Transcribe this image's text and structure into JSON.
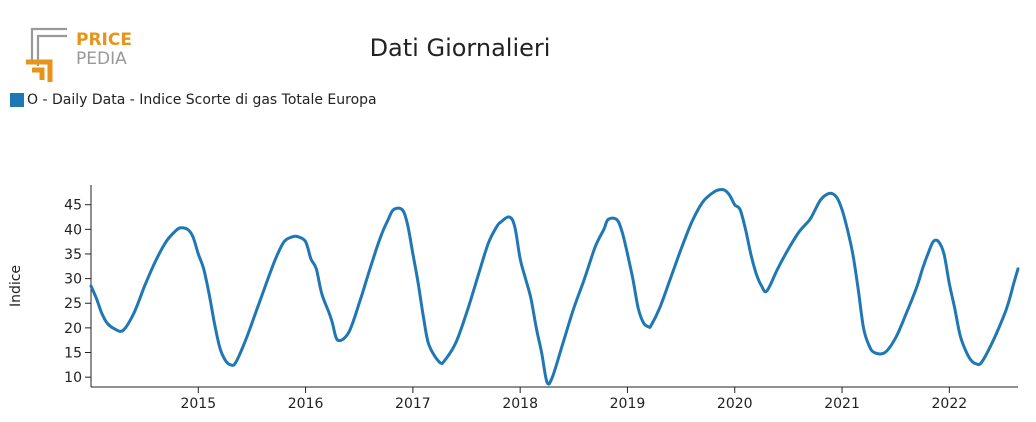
{
  "logo": {
    "line1": "PRICE",
    "line2": "PEDIA",
    "colors": {
      "accent": "#e8941a",
      "gray": "#999999"
    }
  },
  "chart_data": {
    "type": "line",
    "title": "Dati Giornalieri",
    "ylabel": "Indice",
    "xlabel": "",
    "ylim": [
      8,
      49
    ],
    "xlim": [
      2014.0,
      2022.64
    ],
    "yticks": [
      10,
      15,
      20,
      25,
      30,
      35,
      40,
      45
    ],
    "xticks": [
      "2015",
      "2016",
      "2017",
      "2018",
      "2019",
      "2020",
      "2021",
      "2022"
    ],
    "legend_position": "top-left",
    "series": [
      {
        "name": "O - Daily Data - Indice Scorte di gas Totale Europa",
        "color": "#1f77b4",
        "x": [
          2014.0,
          2014.05,
          2014.1,
          2014.15,
          2014.22,
          2014.3,
          2014.4,
          2014.5,
          2014.6,
          2014.7,
          2014.78,
          2014.83,
          2014.9,
          2014.95,
          2015.0,
          2015.05,
          2015.1,
          2015.15,
          2015.2,
          2015.25,
          2015.3,
          2015.35,
          2015.45,
          2015.55,
          2015.65,
          2015.72,
          2015.8,
          2015.88,
          2015.93,
          2016.0,
          2016.05,
          2016.1,
          2016.15,
          2016.22,
          2016.25,
          2016.3,
          2016.4,
          2016.5,
          2016.6,
          2016.7,
          2016.77,
          2016.82,
          2016.9,
          2016.95,
          2017.0,
          2017.05,
          2017.1,
          2017.15,
          2017.25,
          2017.3,
          2017.4,
          2017.5,
          2017.6,
          2017.7,
          2017.78,
          2017.82,
          2017.9,
          2017.95,
          2018.0,
          2018.05,
          2018.1,
          2018.15,
          2018.2,
          2018.25,
          2018.3,
          2018.4,
          2018.5,
          2018.6,
          2018.7,
          2018.78,
          2018.82,
          2018.9,
          2018.95,
          2019.0,
          2019.05,
          2019.1,
          2019.15,
          2019.2,
          2019.22,
          2019.3,
          2019.4,
          2019.5,
          2019.6,
          2019.7,
          2019.8,
          2019.85,
          2019.9,
          2019.95,
          2020.0,
          2020.05,
          2020.1,
          2020.15,
          2020.2,
          2020.25,
          2020.3,
          2020.4,
          2020.5,
          2020.6,
          2020.7,
          2020.75,
          2020.8,
          2020.85,
          2020.9,
          2020.95,
          2021.0,
          2021.05,
          2021.1,
          2021.15,
          2021.2,
          2021.25,
          2021.3,
          2021.4,
          2021.5,
          2021.6,
          2021.7,
          2021.75,
          2021.8,
          2021.85,
          2021.9,
          2021.95,
          2022.0,
          2022.05,
          2022.1,
          2022.15,
          2022.2,
          2022.25,
          2022.3,
          2022.4,
          2022.5,
          2022.55,
          2022.6,
          2022.64
        ],
        "values": [
          28.5,
          26,
          23,
          21,
          19.8,
          19.5,
          23,
          28.5,
          33.5,
          37.5,
          39.5,
          40.3,
          40,
          38.5,
          35,
          32,
          27,
          21,
          16,
          13.5,
          12.5,
          13,
          18,
          24,
          30,
          34,
          37.5,
          38.5,
          38.5,
          37.5,
          34,
          32,
          27,
          23,
          21,
          17.5,
          19,
          25,
          32,
          38.5,
          42,
          44,
          44,
          41,
          35,
          29,
          22,
          16.5,
          13,
          13.5,
          17,
          23,
          30,
          37,
          40.5,
          41.5,
          42.5,
          40.5,
          34,
          30,
          26,
          20,
          15,
          9,
          10,
          17,
          24,
          30,
          36.5,
          40,
          42,
          42,
          39.5,
          35,
          30,
          24,
          21,
          20.2,
          20.5,
          24,
          30,
          36,
          41.5,
          45.5,
          47.5,
          48,
          48,
          47,
          45,
          44,
          40,
          35,
          31,
          28.5,
          27.5,
          32,
          36,
          39.5,
          42,
          44,
          46,
          47,
          47.3,
          46.5,
          44,
          40,
          35,
          28,
          20,
          16.5,
          15,
          15,
          18,
          23,
          28.5,
          32,
          35,
          37.5,
          37.5,
          35,
          29,
          24,
          18.5,
          15.5,
          13.5,
          12.7,
          13,
          17,
          22,
          25,
          29,
          32
        ]
      }
    ]
  }
}
